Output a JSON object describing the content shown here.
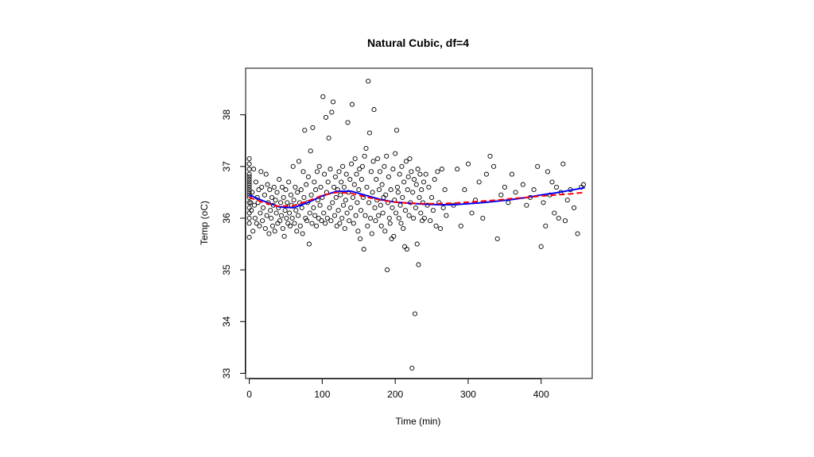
{
  "chart_data": {
    "type": "scatter",
    "title": "Natural Cubic, df=4",
    "xlabel": "Time (min)",
    "ylabel": "Temp (oC)",
    "xlim": [
      -5,
      470
    ],
    "ylim": [
      32.9,
      38.9
    ],
    "xticks": [
      0,
      100,
      200,
      300,
      400
    ],
    "yticks": [
      33,
      34,
      35,
      36,
      37,
      38
    ],
    "grid": false,
    "legend": "none",
    "points": [
      [
        0,
        35.63
      ],
      [
        0,
        35.9
      ],
      [
        0,
        36.0
      ],
      [
        0,
        36.1
      ],
      [
        0,
        36.2
      ],
      [
        0,
        36.3
      ],
      [
        0,
        36.4
      ],
      [
        0,
        36.45
      ],
      [
        0,
        36.5
      ],
      [
        0,
        36.55
      ],
      [
        0,
        36.6
      ],
      [
        0,
        36.65
      ],
      [
        0,
        36.7
      ],
      [
        0,
        36.75
      ],
      [
        0,
        36.8
      ],
      [
        0,
        36.85
      ],
      [
        0,
        36.95
      ],
      [
        0,
        37.05
      ],
      [
        0,
        37.15
      ],
      [
        2,
        36.3
      ],
      [
        3,
        36.15
      ],
      [
        4,
        36.5
      ],
      [
        5,
        35.75
      ],
      [
        6,
        36.95
      ],
      [
        7,
        36.25
      ],
      [
        8,
        36.0
      ],
      [
        9,
        36.7
      ],
      [
        10,
        35.9
      ],
      [
        11,
        36.4
      ],
      [
        12,
        36.3
      ],
      [
        13,
        36.55
      ],
      [
        14,
        35.85
      ],
      [
        15,
        36.1
      ],
      [
        16,
        36.9
      ],
      [
        17,
        36.6
      ],
      [
        18,
        35.95
      ],
      [
        19,
        36.2
      ],
      [
        21,
        36.45
      ],
      [
        22,
        35.8
      ],
      [
        23,
        36.85
      ],
      [
        24,
        36.05
      ],
      [
        25,
        36.65
      ],
      [
        26,
        36.3
      ],
      [
        27,
        35.7
      ],
      [
        28,
        36.55
      ],
      [
        29,
        36.15
      ],
      [
        30,
        36.0
      ],
      [
        31,
        36.4
      ],
      [
        32,
        35.85
      ],
      [
        33,
        36.25
      ],
      [
        34,
        36.6
      ],
      [
        35,
        35.75
      ],
      [
        36,
        36.35
      ],
      [
        37,
        36.1
      ],
      [
        38,
        36.5
      ],
      [
        39,
        35.9
      ],
      [
        40,
        36.2
      ],
      [
        41,
        36.75
      ],
      [
        42,
        35.95
      ],
      [
        43,
        36.3
      ],
      [
        44,
        36.05
      ],
      [
        45,
        36.6
      ],
      [
        46,
        35.8
      ],
      [
        47,
        36.4
      ],
      [
        48,
        35.65
      ],
      [
        49,
        36.15
      ],
      [
        50,
        36.55
      ],
      [
        51,
        36.0
      ],
      [
        52,
        36.3
      ],
      [
        53,
        35.9
      ],
      [
        54,
        36.7
      ],
      [
        55,
        36.1
      ],
      [
        56,
        35.85
      ],
      [
        57,
        36.45
      ],
      [
        58,
        36.25
      ],
      [
        59,
        36.0
      ],
      [
        60,
        37.0
      ],
      [
        61,
        36.35
      ],
      [
        62,
        35.9
      ],
      [
        63,
        36.6
      ],
      [
        64,
        36.15
      ],
      [
        65,
        35.75
      ],
      [
        66,
        36.5
      ],
      [
        67,
        36.05
      ],
      [
        68,
        37.1
      ],
      [
        69,
        36.3
      ],
      [
        70,
        35.85
      ],
      [
        71,
        36.55
      ],
      [
        72,
        36.2
      ],
      [
        73,
        35.7
      ],
      [
        74,
        36.9
      ],
      [
        75,
        36.4
      ],
      [
        76,
        37.7
      ],
      [
        77,
        36.0
      ],
      [
        78,
        36.65
      ],
      [
        79,
        35.95
      ],
      [
        80,
        36.3
      ],
      [
        81,
        36.8
      ],
      [
        82,
        35.5
      ],
      [
        83,
        36.1
      ],
      [
        84,
        37.3
      ],
      [
        85,
        36.45
      ],
      [
        86,
        35.9
      ],
      [
        87,
        37.75
      ],
      [
        88,
        36.2
      ],
      [
        89,
        36.7
      ],
      [
        90,
        36.05
      ],
      [
        91,
        36.55
      ],
      [
        92,
        35.85
      ],
      [
        93,
        36.9
      ],
      [
        94,
        36.35
      ],
      [
        95,
        36.0
      ],
      [
        96,
        37.0
      ],
      [
        97,
        36.25
      ],
      [
        98,
        36.6
      ],
      [
        99,
        35.95
      ],
      [
        100,
        36.4
      ],
      [
        101,
        38.35
      ],
      [
        102,
        36.1
      ],
      [
        103,
        36.85
      ],
      [
        104,
        35.9
      ],
      [
        105,
        37.95
      ],
      [
        106,
        36.5
      ],
      [
        107,
        36.0
      ],
      [
        108,
        36.7
      ],
      [
        109,
        37.55
      ],
      [
        110,
        36.2
      ],
      [
        111,
        36.95
      ],
      [
        112,
        35.95
      ],
      [
        113,
        38.05
      ],
      [
        114,
        36.3
      ],
      [
        115,
        38.25
      ],
      [
        116,
        36.6
      ],
      [
        117,
        36.05
      ],
      [
        118,
        36.8
      ],
      [
        119,
        36.4
      ],
      [
        120,
        35.85
      ],
      [
        121,
        36.55
      ],
      [
        122,
        36.15
      ],
      [
        123,
        36.9
      ],
      [
        124,
        35.9
      ],
      [
        125,
        36.45
      ],
      [
        126,
        36.7
      ],
      [
        127,
        36.0
      ],
      [
        128,
        37.0
      ],
      [
        129,
        36.25
      ],
      [
        130,
        36.6
      ],
      [
        131,
        35.8
      ],
      [
        132,
        36.35
      ],
      [
        133,
        36.85
      ],
      [
        134,
        36.1
      ],
      [
        135,
        37.85
      ],
      [
        136,
        36.5
      ],
      [
        137,
        35.95
      ],
      [
        138,
        36.75
      ],
      [
        139,
        36.2
      ],
      [
        140,
        37.05
      ],
      [
        141,
        38.2
      ],
      [
        142,
        36.4
      ],
      [
        143,
        35.9
      ],
      [
        144,
        36.65
      ],
      [
        145,
        37.15
      ],
      [
        146,
        36.05
      ],
      [
        147,
        36.85
      ],
      [
        148,
        36.3
      ],
      [
        149,
        35.75
      ],
      [
        150,
        36.55
      ],
      [
        151,
        36.95
      ],
      [
        152,
        35.6
      ],
      [
        153,
        36.15
      ],
      [
        154,
        36.75
      ],
      [
        155,
        37.0
      ],
      [
        156,
        36.4
      ],
      [
        157,
        35.4
      ],
      [
        158,
        37.2
      ],
      [
        159,
        36.05
      ],
      [
        160,
        37.35
      ],
      [
        161,
        36.6
      ],
      [
        162,
        35.85
      ],
      [
        163,
        38.65
      ],
      [
        164,
        36.3
      ],
      [
        165,
        37.65
      ],
      [
        166,
        36.0
      ],
      [
        167,
        36.9
      ],
      [
        168,
        35.7
      ],
      [
        169,
        36.5
      ],
      [
        170,
        37.1
      ],
      [
        171,
        38.1
      ],
      [
        172,
        36.2
      ],
      [
        173,
        35.95
      ],
      [
        174,
        36.75
      ],
      [
        175,
        36.35
      ],
      [
        176,
        37.15
      ],
      [
        177,
        36.05
      ],
      [
        178,
        36.55
      ],
      [
        179,
        36.9
      ],
      [
        180,
        36.25
      ],
      [
        181,
        35.85
      ],
      [
        182,
        36.65
      ],
      [
        183,
        36.1
      ],
      [
        184,
        36.4
      ],
      [
        185,
        37.0
      ],
      [
        186,
        35.75
      ],
      [
        187,
        36.45
      ],
      [
        188,
        37.2
      ],
      [
        189,
        35.0
      ],
      [
        190,
        36.3
      ],
      [
        191,
        36.8
      ],
      [
        192,
        36.0
      ],
      [
        193,
        35.9
      ],
      [
        194,
        36.55
      ],
      [
        195,
        35.6
      ],
      [
        196,
        36.2
      ],
      [
        197,
        36.95
      ],
      [
        198,
        35.65
      ],
      [
        199,
        36.35
      ],
      [
        200,
        37.25
      ],
      [
        201,
        36.1
      ],
      [
        202,
        37.7
      ],
      [
        203,
        36.6
      ],
      [
        204,
        36.5
      ],
      [
        205,
        36.0
      ],
      [
        206,
        36.85
      ],
      [
        207,
        36.25
      ],
      [
        208,
        35.9
      ],
      [
        209,
        37.0
      ],
      [
        210,
        36.4
      ],
      [
        211,
        35.8
      ],
      [
        212,
        36.7
      ],
      [
        213,
        35.45
      ],
      [
        214,
        36.15
      ],
      [
        215,
        37.1
      ],
      [
        216,
        35.4
      ],
      [
        217,
        36.55
      ],
      [
        218,
        36.8
      ],
      [
        219,
        36.05
      ],
      [
        220,
        37.15
      ],
      [
        221,
        36.3
      ],
      [
        222,
        36.9
      ],
      [
        223,
        33.1
      ],
      [
        224,
        36.5
      ],
      [
        225,
        36.0
      ],
      [
        226,
        36.75
      ],
      [
        227,
        34.15
      ],
      [
        228,
        36.2
      ],
      [
        229,
        36.65
      ],
      [
        230,
        35.5
      ],
      [
        231,
        36.95
      ],
      [
        232,
        35.1
      ],
      [
        233,
        36.4
      ],
      [
        234,
        36.85
      ],
      [
        235,
        36.1
      ],
      [
        236,
        36.55
      ],
      [
        237,
        35.95
      ],
      [
        238,
        36.3
      ],
      [
        239,
        36.7
      ],
      [
        240,
        36.0
      ],
      [
        242,
        36.85
      ],
      [
        244,
        36.25
      ],
      [
        246,
        36.6
      ],
      [
        248,
        35.95
      ],
      [
        250,
        36.4
      ],
      [
        252,
        36.15
      ],
      [
        254,
        36.75
      ],
      [
        256,
        35.85
      ],
      [
        258,
        36.9
      ],
      [
        260,
        36.3
      ],
      [
        262,
        35.8
      ],
      [
        264,
        36.95
      ],
      [
        266,
        36.2
      ],
      [
        268,
        36.55
      ],
      [
        270,
        36.05
      ],
      [
        280,
        36.25
      ],
      [
        285,
        36.95
      ],
      [
        290,
        35.85
      ],
      [
        295,
        36.55
      ],
      [
        300,
        37.05
      ],
      [
        305,
        36.1
      ],
      [
        310,
        36.35
      ],
      [
        315,
        36.7
      ],
      [
        320,
        36.0
      ],
      [
        325,
        36.85
      ],
      [
        330,
        37.2
      ],
      [
        335,
        37.0
      ],
      [
        340,
        35.6
      ],
      [
        345,
        36.45
      ],
      [
        350,
        36.6
      ],
      [
        355,
        36.3
      ],
      [
        360,
        36.85
      ],
      [
        365,
        36.5
      ],
      [
        375,
        36.65
      ],
      [
        380,
        36.25
      ],
      [
        385,
        36.4
      ],
      [
        390,
        36.55
      ],
      [
        395,
        37.0
      ],
      [
        400,
        35.45
      ],
      [
        403,
        36.3
      ],
      [
        406,
        35.85
      ],
      [
        409,
        36.9
      ],
      [
        412,
        36.45
      ],
      [
        415,
        36.7
      ],
      [
        418,
        36.1
      ],
      [
        421,
        36.6
      ],
      [
        424,
        36.0
      ],
      [
        427,
        36.5
      ],
      [
        430,
        37.05
      ],
      [
        433,
        35.95
      ],
      [
        436,
        36.35
      ],
      [
        440,
        36.55
      ],
      [
        445,
        36.2
      ],
      [
        450,
        35.7
      ],
      [
        455,
        36.6
      ],
      [
        458,
        36.65
      ]
    ],
    "series": [
      {
        "type": "line",
        "color": "#0000ff",
        "style": "solid",
        "values": [
          [
            0,
            36.45
          ],
          [
            20,
            36.33
          ],
          [
            40,
            36.22
          ],
          [
            60,
            36.2
          ],
          [
            80,
            36.3
          ],
          [
            100,
            36.43
          ],
          [
            120,
            36.52
          ],
          [
            140,
            36.52
          ],
          [
            160,
            36.44
          ],
          [
            180,
            36.36
          ],
          [
            200,
            36.31
          ],
          [
            220,
            36.29
          ],
          [
            240,
            36.27
          ],
          [
            260,
            36.26
          ],
          [
            280,
            36.26
          ],
          [
            300,
            36.28
          ],
          [
            320,
            36.3
          ],
          [
            340,
            36.33
          ],
          [
            360,
            36.36
          ],
          [
            380,
            36.4
          ],
          [
            400,
            36.45
          ],
          [
            420,
            36.49
          ],
          [
            440,
            36.54
          ],
          [
            460,
            36.59
          ]
        ]
      },
      {
        "type": "line",
        "color": "#ff0000",
        "style": "dashed",
        "values": [
          [
            0,
            36.4
          ],
          [
            20,
            36.3
          ],
          [
            40,
            36.23
          ],
          [
            60,
            36.24
          ],
          [
            80,
            36.33
          ],
          [
            100,
            36.44
          ],
          [
            120,
            36.5
          ],
          [
            140,
            36.48
          ],
          [
            160,
            36.41
          ],
          [
            180,
            36.35
          ],
          [
            200,
            36.31
          ],
          [
            220,
            36.29
          ],
          [
            240,
            36.28
          ],
          [
            260,
            36.28
          ],
          [
            280,
            36.29
          ],
          [
            300,
            36.31
          ],
          [
            320,
            36.33
          ],
          [
            340,
            36.35
          ],
          [
            360,
            36.38
          ],
          [
            380,
            36.4
          ],
          [
            400,
            36.43
          ],
          [
            420,
            36.45
          ],
          [
            440,
            36.47
          ],
          [
            460,
            36.5
          ]
        ]
      }
    ]
  }
}
